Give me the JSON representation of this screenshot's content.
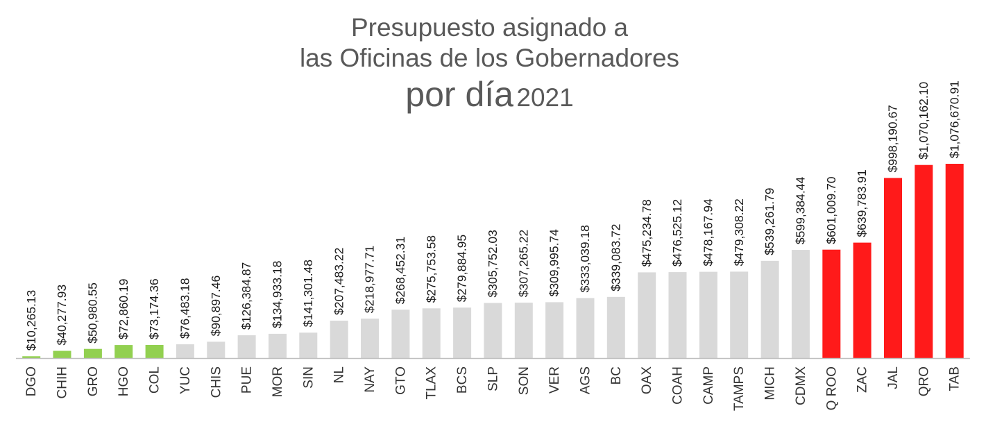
{
  "title": {
    "line1": "Presupuesto asignado a",
    "line2": "las Oficinas de los Gobernadores",
    "line3_bold": "por día",
    "line3_year": "2021"
  },
  "colors": {
    "green": "#92d050",
    "gray": "#d9d9d9",
    "red": "#ff1a1a"
  },
  "chart_data": {
    "type": "bar",
    "title": "Presupuesto asignado a las Oficinas de los Gobernadores por día 2021",
    "xlabel": "",
    "ylabel": "",
    "ylim": [
      0,
      1100000
    ],
    "grid": false,
    "legend": "none",
    "categories": [
      "DGO",
      "CHIH",
      "GRO",
      "HGO",
      "COL",
      "YUC",
      "CHIS",
      "PUE",
      "MOR",
      "SIN",
      "NL",
      "NAY",
      "GTO",
      "TLAX",
      "BCS",
      "SLP",
      "SON",
      "VER",
      "AGS",
      "BC",
      "OAX",
      "COAH",
      "CAMP",
      "TAMPS",
      "MICH",
      "CDMX",
      "Q ROO",
      "ZAC",
      "JAL",
      "QRO",
      "TAB"
    ],
    "values": [
      10265.13,
      40277.93,
      50980.55,
      72860.19,
      73174.36,
      76483.18,
      90897.46,
      126384.87,
      134933.18,
      141301.48,
      207483.22,
      218977.71,
      268452.31,
      275753.58,
      279884.95,
      305752.03,
      307265.22,
      309995.74,
      333039.18,
      339083.72,
      475234.78,
      476525.12,
      478167.94,
      479308.22,
      539261.79,
      599384.44,
      601009.7,
      639783.91,
      998190.67,
      1070162.1,
      1076670.91
    ],
    "labels": [
      "$10,265.13",
      "$40,277.93",
      "$50,980.55",
      "$72,860.19",
      "$73,174.36",
      "$76,483.18",
      "$90,897.46",
      "$126,384.87",
      "$134,933.18",
      "$141,301.48",
      "$207,483.22",
      "$218,977.71",
      "$268,452.31",
      "$275,753.58",
      "$279,884.95",
      "$305,752.03",
      "$307,265.22",
      "$309,995.74",
      "$333,039.18",
      "$339,083.72",
      "$475,234.78",
      "$476,525.12",
      "$478,167.94",
      "$479,308.22",
      "$539,261.79",
      "$599,384.44",
      "$601,009.70",
      "$639,783.91",
      "$998,190.67",
      "$1,070,162.10",
      "$1,076,670.91"
    ],
    "bar_colors": [
      "green",
      "green",
      "green",
      "green",
      "green",
      "gray",
      "gray",
      "gray",
      "gray",
      "gray",
      "gray",
      "gray",
      "gray",
      "gray",
      "gray",
      "gray",
      "gray",
      "gray",
      "gray",
      "gray",
      "gray",
      "gray",
      "gray",
      "gray",
      "gray",
      "gray",
      "red",
      "red",
      "red",
      "red",
      "red"
    ]
  }
}
